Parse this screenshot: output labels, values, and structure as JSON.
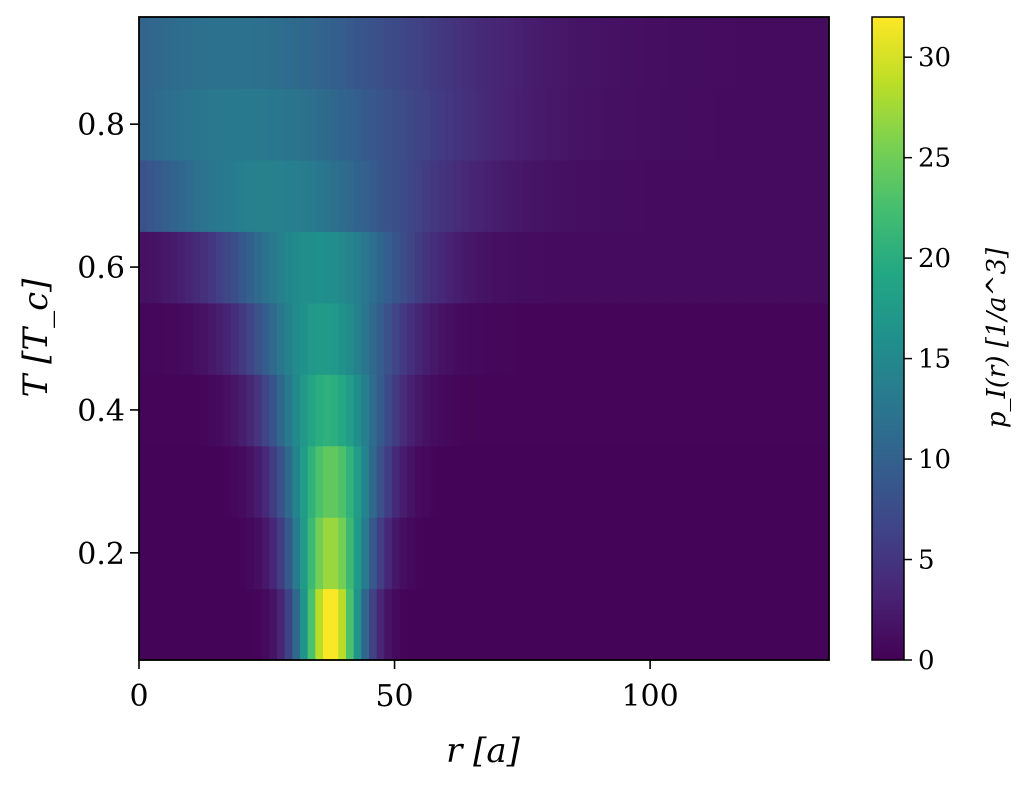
{
  "chart_data": {
    "type": "heatmap",
    "colormap": "viridis",
    "xlabel": "r [a]",
    "ylabel": "T [T_c]",
    "colorbar_label": "p_I(r) [1/a^3]",
    "xlim": [
      0,
      135
    ],
    "ylim": [
      0.05,
      0.95
    ],
    "x_ticks": [
      0,
      50,
      100
    ],
    "x_tick_labels": [
      "0",
      "50",
      "100"
    ],
    "y_ticks": [
      0.2,
      0.4,
      0.6,
      0.8
    ],
    "y_tick_labels": [
      "0.2",
      "0.4",
      "0.6",
      "0.8"
    ],
    "color_range": [
      0,
      32
    ],
    "colorbar_ticks": [
      0,
      5,
      10,
      15,
      20,
      25,
      30
    ],
    "colorbar_tick_labels": [
      "0",
      "5",
      "10",
      "15",
      "20",
      "25",
      "30"
    ],
    "rows": [
      {
        "T": 0.1,
        "center": 37.5,
        "sigma": 4.5,
        "peak": 32,
        "floor": 0.3
      },
      {
        "T": 0.2,
        "center": 37.5,
        "sigma": 5.5,
        "peak": 27,
        "floor": 0.3
      },
      {
        "T": 0.3,
        "center": 37.5,
        "sigma": 6.5,
        "peak": 24,
        "floor": 0.3
      },
      {
        "T": 0.4,
        "center": 37.0,
        "sigma": 8.0,
        "peak": 20,
        "floor": 0.4
      },
      {
        "T": 0.5,
        "center": 36.0,
        "sigma": 10.0,
        "peak": 17,
        "floor": 0.5
      },
      {
        "T": 0.6,
        "center": 35.0,
        "sigma": 13.0,
        "peak": 15,
        "floor": 1.0
      },
      {
        "T": 0.7,
        "center": 25.0,
        "sigma": 22.0,
        "peak": 13,
        "floor": 1.0
      },
      {
        "T": 0.8,
        "center": 20.0,
        "sigma": 28.0,
        "peak": 12,
        "floor": 1.0
      },
      {
        "T": 0.9,
        "center": 18.0,
        "sigma": 30.0,
        "peak": 11,
        "floor": 1.0
      }
    ]
  }
}
